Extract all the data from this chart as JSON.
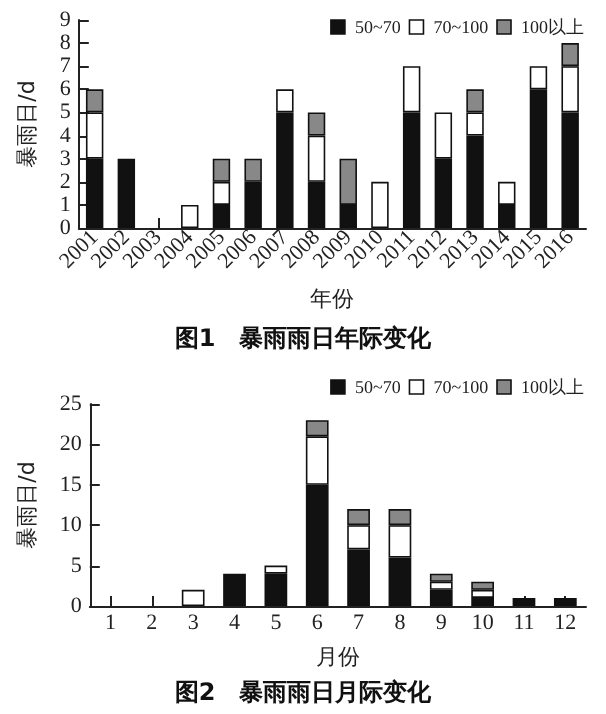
{
  "chart_data": [
    {
      "type": "bar",
      "title": "图1　暴雨雨日年际变化",
      "xlabel": "年份",
      "ylabel": "暴雨日/d",
      "stacked": true,
      "categories": [
        "2001",
        "2002",
        "2003",
        "2004",
        "2005",
        "2006",
        "2007",
        "2008",
        "2009",
        "2010",
        "2011",
        "2012",
        "2013",
        "2014",
        "2015",
        "2016"
      ],
      "series": [
        {
          "name": "50~70",
          "color": "#111111",
          "values": [
            3,
            3,
            0,
            0,
            1,
            2,
            5,
            2,
            1,
            0,
            5,
            3,
            4,
            1,
            6,
            5
          ]
        },
        {
          "name": "70~100",
          "color": "#ffffff",
          "values": [
            2,
            0,
            0,
            1,
            1,
            0,
            1,
            2,
            0,
            2,
            2,
            2,
            1,
            1,
            1,
            2
          ]
        },
        {
          "name": "100以上",
          "color": "#888888",
          "values": [
            1,
            0,
            0,
            0,
            1,
            1,
            0,
            1,
            2,
            0,
            0,
            0,
            1,
            0,
            0,
            1
          ]
        }
      ],
      "ylim": [
        0,
        9
      ],
      "yticks": [
        0,
        1,
        2,
        3,
        4,
        5,
        6,
        7,
        8,
        9
      ],
      "grid": false,
      "legend": "top right"
    },
    {
      "type": "bar",
      "title": "图2　暴雨雨日月际变化",
      "xlabel": "月份",
      "ylabel": "暴雨日/d",
      "stacked": true,
      "categories": [
        "1",
        "2",
        "3",
        "4",
        "5",
        "6",
        "7",
        "8",
        "9",
        "10",
        "11",
        "12"
      ],
      "series": [
        {
          "name": "50~70",
          "color": "#111111",
          "values": [
            0,
            0,
            0,
            4,
            4,
            15,
            7,
            6,
            2,
            1,
            1,
            1
          ]
        },
        {
          "name": "70~100",
          "color": "#ffffff",
          "values": [
            0,
            0,
            2,
            0,
            1,
            6,
            3,
            4,
            1,
            1,
            0,
            0
          ]
        },
        {
          "name": "100以上",
          "color": "#888888",
          "values": [
            0,
            0,
            0,
            0,
            0,
            2,
            2,
            2,
            1,
            1,
            0,
            0
          ]
        }
      ],
      "ylim": [
        0,
        25
      ],
      "yticks": [
        0,
        5,
        10,
        15,
        20,
        25
      ],
      "grid": false,
      "legend": "top right"
    }
  ]
}
